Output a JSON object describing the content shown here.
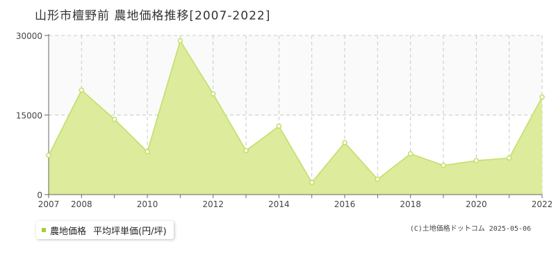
{
  "title": "山形市檀野前 農地価格推移[2007-2022]",
  "legend": {
    "series_name": "農地価格",
    "unit_label": "平均坪単価(円/坪)",
    "marker_color": "#a5cf3a"
  },
  "credit": "(C)土地価格ドットコム 2025-05-06",
  "colors": {
    "area_fill": "#dceb9c",
    "line": "#c0df65",
    "point_fill": "#ffffff",
    "grid": "#c8c8c8",
    "axis": "#666666",
    "upper_band": "#fafafa"
  },
  "chart_data": {
    "type": "area",
    "title": "山形市檀野前 農地価格推移[2007-2022]",
    "xlabel": "",
    "ylabel": "",
    "x": [
      2007,
      2008,
      2009,
      2010,
      2011,
      2012,
      2013,
      2014,
      2015,
      2016,
      2017,
      2018,
      2019,
      2020,
      2021,
      2022
    ],
    "series": [
      {
        "name": "農地価格",
        "values": [
          7400,
          19700,
          14200,
          8100,
          29000,
          19000,
          8300,
          12900,
          2300,
          9800,
          2900,
          7700,
          5500,
          6400,
          6900,
          18400
        ]
      }
    ],
    "xlim": [
      2007,
      2022
    ],
    "ylim": [
      0,
      30000
    ],
    "yticks": [
      0,
      15000,
      30000
    ],
    "xtick_labels": [
      2007,
      2008,
      2010,
      2012,
      2014,
      2016,
      2018,
      2020,
      2022
    ],
    "grid": true,
    "legend_position": "bottom-left"
  }
}
